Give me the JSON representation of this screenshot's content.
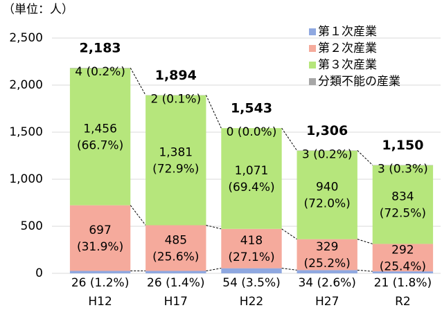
{
  "chart_data": {
    "type": "stacked_bar",
    "unit_label": "（単位：人）",
    "categories": [
      "H12",
      "H17",
      "H22",
      "H27",
      "R2"
    ],
    "series": [
      {
        "name": "第１次産業",
        "color": "#8fa8e0",
        "values": [
          26,
          26,
          54,
          34,
          21
        ],
        "value_labels": [
          "26 (1.2%)",
          "26 (1.4%)",
          "54 (3.5%)",
          "34 (2.6%)",
          "21 (1.8%)"
        ]
      },
      {
        "name": "第２次産業",
        "color": "#f5aa9c",
        "values": [
          697,
          485,
          418,
          329,
          292
        ],
        "value_labels": [
          [
            "697",
            "(31.9%)"
          ],
          [
            "485",
            "(25.6%)"
          ],
          [
            "418",
            "(27.1%)"
          ],
          [
            "329",
            "(25.2%)"
          ],
          [
            "292",
            "(25.4%)"
          ]
        ]
      },
      {
        "name": "第３次産業",
        "color": "#b6e67c",
        "values": [
          1456,
          1381,
          1071,
          940,
          834
        ],
        "value_labels": [
          [
            "1,456",
            "(66.7%)"
          ],
          [
            "1,381",
            "(72.9%)"
          ],
          [
            "1,071",
            "(69.4%)"
          ],
          [
            "940",
            "(72.0%)"
          ],
          [
            "834",
            "(72.5%)"
          ]
        ]
      },
      {
        "name": "分類不能の産業",
        "color": "#a6a6a6",
        "values": [
          4,
          2,
          0,
          3,
          3
        ],
        "value_labels": [
          "4 (0.2%)",
          "2 (0.1%)",
          "0 (0.0%)",
          "3 (0.2%)",
          "3 (0.3%)"
        ]
      }
    ],
    "totals": [
      2183,
      1894,
      1543,
      1306,
      1150
    ],
    "total_labels": [
      "2,183",
      "1,894",
      "1,543",
      "1,306",
      "1,150"
    ],
    "ylim": [
      0,
      2500
    ],
    "yticks": [
      0,
      500,
      {
        "value": 1000,
        "label": "1,000"
      },
      {
        "value": 1500,
        "label": "1,500"
      },
      {
        "value": 2000,
        "label": "2,000"
      },
      {
        "value": 2500,
        "label": "2,500"
      }
    ],
    "grid": true,
    "legend": "top-right"
  }
}
